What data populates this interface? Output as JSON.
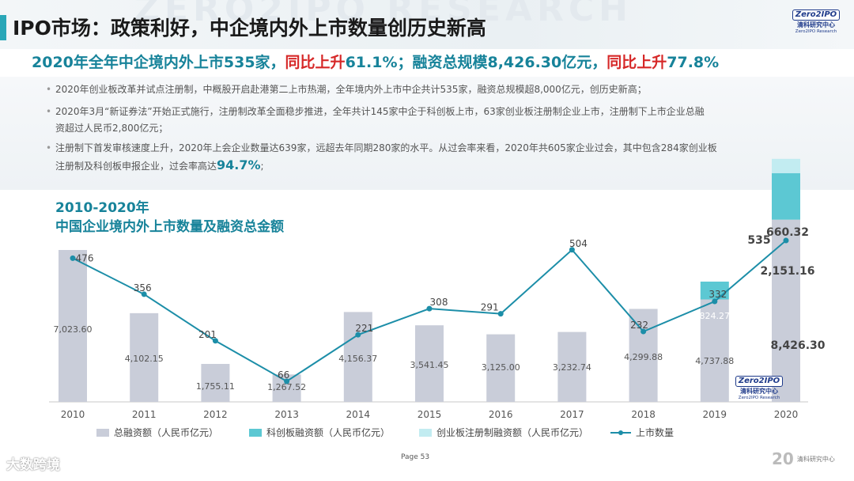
{
  "page": {
    "title": "IPO市场：政策利好，中企境内外上市数量创历史新高",
    "watermark": "ZERO2IPO RESEARCH",
    "headline": {
      "part1": "2020年全年中企境内外上市535家，",
      "part2": "同比上升",
      "part3": "61.1%；融资总规模8,426.30亿元，",
      "part4": "同比上升",
      "part5": "77.8%"
    },
    "bullets": {
      "b1": "2020年创业板改革并试点注册制，中概股开启赴港第二上市热潮，全年境内外上市中企共计535家，融资总规模超8,000亿元，创历史新高；",
      "b2_line1": "2020年3月“新证券法”开始正式施行，注册制改革全面稳步推进，全年共计145家中企于科创板上市，63家创业板注册制企业上市，注册制下上市企业总融",
      "b2_line2": "资超过人民币2,800亿元；",
      "b3_line1": "注册制下首发审核速度上升，2020年上会企业数量达639家，远超去年同期280家的水平。从过会率来看，2020年共605家企业过会，其中包含284家创业板",
      "b3_line2": "注册制及科创板申报企业，过会率高达",
      "b3_highlight": "94.7%",
      "b3_end": ";"
    },
    "logo": {
      "brand": "Zero2IPO",
      "cn": "清科研究中心",
      "en": "Zero2IPO Research"
    },
    "footer": {
      "left": "大数跨境",
      "page_label": "Page 53",
      "right_num": "20",
      "right_text": "清科研究中心"
    }
  },
  "chart_data": {
    "type": "bar",
    "title": "2010-2020年",
    "subtitle": "中国企业境内外上市数量及融资总金额",
    "categories": [
      "2010",
      "2011",
      "2012",
      "2013",
      "2014",
      "2015",
      "2016",
      "2017",
      "2018",
      "2019",
      "2020"
    ],
    "series": [
      {
        "name": "总融资额（人民币亿元）",
        "kind": "bar",
        "values": [
          7023.6,
          4102.15,
          1755.11,
          1267.52,
          4156.37,
          3541.45,
          3125.0,
          3232.74,
          4299.88,
          4737.88,
          8426.3
        ],
        "labels": [
          "7,023.60",
          "4,102.15",
          "1,755.11",
          "1,267.52",
          "4,156.37",
          "3,541.45",
          "3,125.00",
          "3,232.74",
          "4,299.88",
          "4,737.88",
          "8,426.30"
        ],
        "color": "#c9cdd9"
      },
      {
        "name": "科创板融资额（人民币亿元）",
        "kind": "bar",
        "values": [
          null,
          null,
          null,
          null,
          null,
          null,
          null,
          null,
          null,
          824.27,
          2151.16
        ],
        "labels": [
          "",
          "",
          "",
          "",
          "",
          "",
          "",
          "",
          "",
          "824.27",
          "2,151.16"
        ],
        "color": "#5cc8d3"
      },
      {
        "name": "创业板注册制融资额（人民币亿元）",
        "kind": "bar",
        "values": [
          null,
          null,
          null,
          null,
          null,
          null,
          null,
          null,
          null,
          null,
          660.32
        ],
        "labels": [
          "",
          "",
          "",
          "",
          "",
          "",
          "",
          "",
          "",
          "",
          "660.32"
        ],
        "color": "#c2ecf1"
      },
      {
        "name": "上市数量",
        "kind": "line",
        "values": [
          476,
          356,
          201,
          66,
          221,
          308,
          291,
          504,
          232,
          332,
          535
        ],
        "labels": [
          "476",
          "356",
          "201",
          "66",
          "221",
          "308",
          "291",
          "504",
          "232",
          "332",
          "535"
        ],
        "color": "#1c8ea8"
      }
    ],
    "grid": false,
    "legend": "bottom"
  }
}
